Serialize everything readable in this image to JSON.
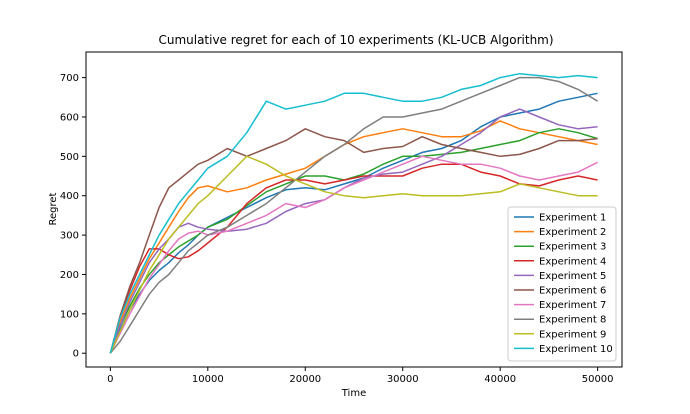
{
  "chart_data": {
    "type": "line",
    "title": "Cumulative regret for each of 10 experiments (KL-UCB Algorithm)",
    "xlabel": "Time",
    "ylabel": "Regret",
    "xlim": [
      -2500,
      52500
    ],
    "ylim": [
      -35,
      765
    ],
    "xticks": [
      0,
      10000,
      20000,
      30000,
      40000,
      50000
    ],
    "xtick_labels": [
      "0",
      "10000",
      "20000",
      "30000",
      "40000",
      "50000"
    ],
    "yticks": [
      0,
      100,
      200,
      300,
      400,
      500,
      600,
      700
    ],
    "ytick_labels": [
      "0",
      "100",
      "200",
      "300",
      "400",
      "500",
      "600",
      "700"
    ],
    "grid": false,
    "legend_placement": "lower-right",
    "x": [
      0,
      1000,
      2000,
      3000,
      4000,
      5000,
      6000,
      7000,
      8000,
      9000,
      10000,
      12000,
      14000,
      16000,
      18000,
      20000,
      22000,
      24000,
      26000,
      28000,
      30000,
      32000,
      34000,
      36000,
      38000,
      40000,
      42000,
      44000,
      46000,
      48000,
      50000
    ],
    "series": [
      {
        "name": "Experiment 1",
        "color": "#1f77b4",
        "values": [
          0,
          60,
          110,
          150,
          185,
          210,
          230,
          255,
          275,
          300,
          320,
          345,
          370,
          395,
          415,
          420,
          415,
          430,
          445,
          470,
          490,
          510,
          520,
          540,
          575,
          600,
          610,
          620,
          640,
          650,
          660
        ]
      },
      {
        "name": "Experiment 2",
        "color": "#ff7f0e",
        "values": [
          0,
          80,
          140,
          190,
          240,
          280,
          320,
          360,
          395,
          420,
          425,
          410,
          420,
          440,
          455,
          470,
          500,
          530,
          550,
          560,
          570,
          560,
          550,
          550,
          565,
          590,
          570,
          560,
          550,
          540,
          530
        ]
      },
      {
        "name": "Experiment 3",
        "color": "#2ca02c",
        "values": [
          0,
          70,
          120,
          165,
          200,
          230,
          250,
          270,
          285,
          300,
          320,
          340,
          375,
          410,
          430,
          450,
          450,
          440,
          455,
          480,
          500,
          500,
          505,
          510,
          520,
          530,
          540,
          560,
          570,
          560,
          545
        ]
      },
      {
        "name": "Experiment 4",
        "color": "#d62728",
        "values": [
          0,
          90,
          160,
          220,
          265,
          265,
          250,
          240,
          245,
          260,
          280,
          320,
          380,
          420,
          440,
          440,
          430,
          440,
          450,
          450,
          450,
          470,
          480,
          480,
          460,
          450,
          430,
          425,
          440,
          450,
          440
        ]
      },
      {
        "name": "Experiment 5",
        "color": "#9467bd",
        "values": [
          0,
          70,
          130,
          180,
          230,
          265,
          290,
          320,
          330,
          320,
          315,
          310,
          315,
          330,
          360,
          380,
          390,
          420,
          445,
          455,
          460,
          480,
          500,
          530,
          560,
          600,
          620,
          600,
          580,
          570,
          575
        ]
      },
      {
        "name": "Experiment 6",
        "color": "#8c564b",
        "values": [
          0,
          95,
          170,
          230,
          300,
          370,
          420,
          440,
          460,
          480,
          490,
          520,
          500,
          520,
          540,
          570,
          550,
          540,
          510,
          520,
          525,
          550,
          530,
          520,
          510,
          500,
          505,
          520,
          540,
          540,
          545
        ]
      },
      {
        "name": "Experiment 7",
        "color": "#e377c2",
        "values": [
          0,
          50,
          100,
          145,
          190,
          225,
          260,
          290,
          305,
          310,
          300,
          310,
          330,
          350,
          380,
          370,
          390,
          420,
          440,
          460,
          480,
          500,
          490,
          480,
          480,
          470,
          450,
          440,
          450,
          460,
          485
        ]
      },
      {
        "name": "Experiment 8",
        "color": "#7f7f7f",
        "values": [
          0,
          30,
          70,
          110,
          150,
          180,
          200,
          230,
          260,
          280,
          300,
          320,
          350,
          380,
          420,
          460,
          500,
          530,
          570,
          600,
          600,
          610,
          620,
          640,
          660,
          680,
          700,
          700,
          690,
          670,
          640
        ]
      },
      {
        "name": "Experiment 9",
        "color": "#bcbd22",
        "values": [
          0,
          55,
          110,
          160,
          210,
          250,
          290,
          320,
          350,
          380,
          400,
          450,
          500,
          480,
          450,
          430,
          410,
          400,
          395,
          400,
          405,
          400,
          400,
          400,
          405,
          410,
          430,
          420,
          410,
          400,
          400
        ]
      },
      {
        "name": "Experiment 10",
        "color": "#17becf",
        "values": [
          0,
          90,
          150,
          200,
          250,
          300,
          340,
          380,
          410,
          440,
          470,
          500,
          560,
          640,
          620,
          630,
          640,
          660,
          660,
          650,
          640,
          640,
          650,
          670,
          680,
          700,
          710,
          705,
          700,
          705,
          700
        ]
      }
    ]
  }
}
